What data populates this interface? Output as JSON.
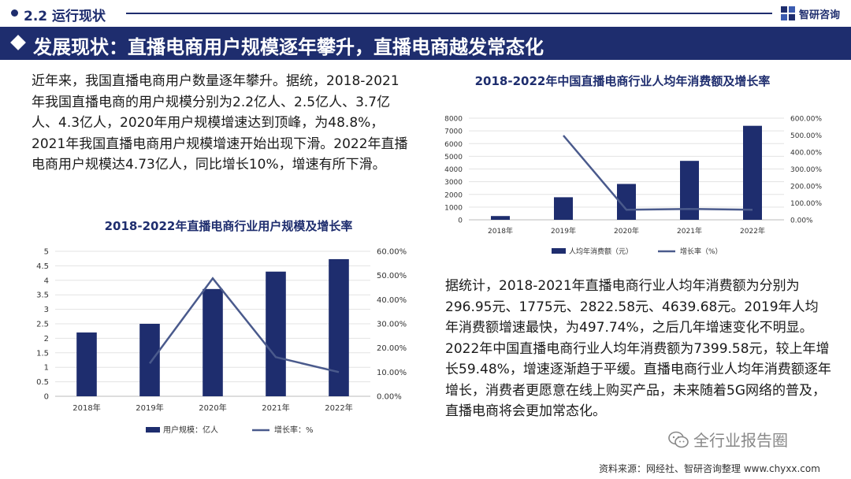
{
  "header": {
    "section_title": "2.2 运行现状",
    "logo_text": "智研咨询"
  },
  "headline": "发展现状：直播电商用户规模逐年攀升，直播电商越发常态化",
  "paragraph1": "近年来，我国直播电商用户数量逐年攀升。据统，2018-2021年我国直播电商的用户规模分别为2.2亿人、2.5亿人、3.7亿人、4.3亿人，2020年用户规模增速达到顶峰，为48.8%，2021年我国直播电商用户规模增速开始出现下滑。2022年直播电商用户规模达4.73亿人，同比增长10%，增速有所下滑。",
  "paragraph2": "据统计，2018-2021年直播电商行业人均年消费额为分别为296.95元、1775元、2822.58元、4639.68元。2019年人均年消费额增速最快，为497.74%，之后几年增速变化不明显。2022年中国直播电商行业人均年消费额为7399.58元，较上年增长59.48%，增速逐渐趋于平缓。直播电商行业人均年消费额逐年增长，消费者更愿意在线上购买产品，未来随着5G网络的普及，直播电商将会更加常态化。",
  "source": "资料来源：网经社、智研咨询整理 www.chyxx.com",
  "watermark_text": "全行业报告圈",
  "colors": {
    "navy": "#1e2d6e",
    "line": "#4a5a8c"
  },
  "chart_data": [
    {
      "type": "bar",
      "title": "2018-2022年直播电商行业用户规模及增长率",
      "categories": [
        "2018年",
        "2019年",
        "2020年",
        "2021年",
        "2022年"
      ],
      "series": [
        {
          "name": "用户规模：亿人",
          "kind": "bar",
          "axis": "left",
          "values": [
            2.2,
            2.5,
            3.7,
            4.3,
            4.73
          ]
        },
        {
          "name": "增长率：%",
          "kind": "line",
          "axis": "right",
          "values": [
            null,
            13.6,
            48.8,
            16.2,
            10
          ]
        }
      ],
      "ylim": [
        0,
        5
      ],
      "yticks": [
        "0",
        "0.5",
        "1",
        "1.5",
        "2",
        "2.5",
        "3",
        "3.5",
        "4",
        "4.5",
        "5"
      ],
      "y2lim": [
        0,
        60
      ],
      "y2ticks": [
        "0.00%",
        "10.00%",
        "20.00%",
        "30.00%",
        "40.00%",
        "50.00%",
        "60.00%"
      ],
      "legend": "bottom"
    },
    {
      "type": "bar",
      "title": "2018-2022年中国直播电商行业人均年消费额及增长率",
      "categories": [
        "2018年",
        "2019年",
        "2020年",
        "2021年",
        "2022年"
      ],
      "series": [
        {
          "name": "人均年消费额（元）",
          "kind": "bar",
          "axis": "left",
          "values": [
            296.95,
            1775,
            2822.58,
            4639.68,
            7399.58
          ]
        },
        {
          "name": "增长率（%）",
          "kind": "line",
          "axis": "right",
          "values": [
            null,
            497.74,
            59.02,
            64.38,
            59.48
          ]
        }
      ],
      "ylim": [
        0,
        8000
      ],
      "yticks": [
        "0",
        "1000",
        "2000",
        "3000",
        "4000",
        "5000",
        "6000",
        "7000",
        "8000"
      ],
      "y2lim": [
        0,
        600
      ],
      "y2ticks": [
        "0.00%",
        "100.00%",
        "200.00%",
        "300.00%",
        "400.00%",
        "500.00%",
        "600.00%"
      ],
      "legend": "bottom"
    }
  ]
}
